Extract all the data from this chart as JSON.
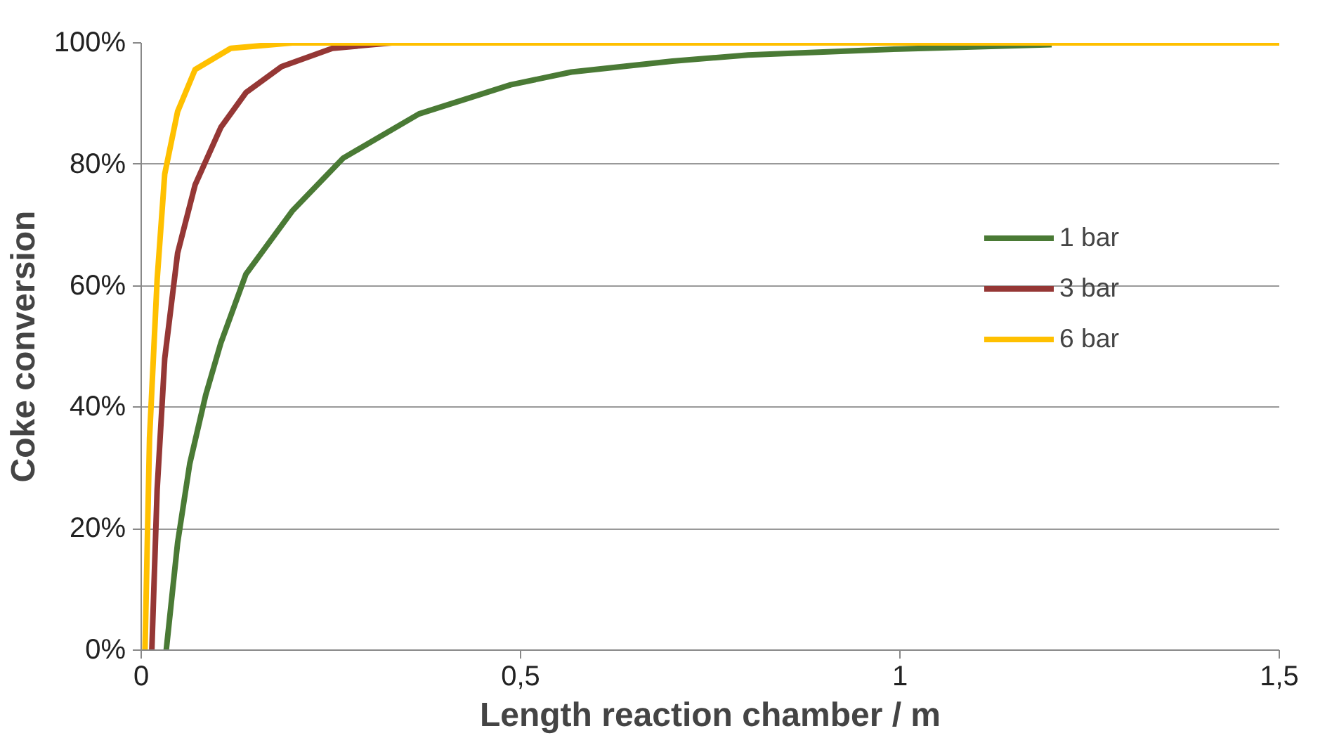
{
  "chart_data": {
    "type": "line",
    "xlabel": "Length reaction chamber / m",
    "ylabel": "Coke conversion",
    "xlim": [
      0,
      1.5
    ],
    "xticks": [
      0,
      {
        "value": 0.5,
        "label": "0,5"
      },
      1,
      {
        "value": 1.5,
        "label": "1,5"
      }
    ],
    "ylim": [
      0,
      100
    ],
    "yticks": [
      {
        "value": 0,
        "label": "0%"
      },
      {
        "value": 20,
        "label": "20%"
      },
      {
        "value": 40,
        "label": "40%"
      },
      {
        "value": 60,
        "label": "60%"
      },
      {
        "value": 80,
        "label": "80%"
      },
      {
        "value": 100,
        "label": "100%"
      }
    ],
    "grid": "y",
    "legend": "right",
    "marker": "none",
    "line_style": "solid",
    "series": [
      {
        "name": "1 bar",
        "color": "#4a7a35",
        "x": [
          0.033,
          0.048,
          0.064,
          0.085,
          0.105,
          0.138,
          0.199,
          0.266,
          0.366,
          0.487,
          0.567,
          0.7,
          0.8,
          1.0,
          1.2
        ],
        "values": [
          0,
          17.7,
          30.7,
          42,
          50.6,
          61.9,
          72.3,
          81,
          88.3,
          93.1,
          95.2,
          97,
          98,
          99,
          99.7
        ]
      },
      {
        "name": "3 bar",
        "color": "#953735",
        "x": [
          0.014,
          0.021,
          0.031,
          0.048,
          0.071,
          0.105,
          0.138,
          0.185,
          0.252,
          0.33
        ],
        "values": [
          0,
          26.4,
          48,
          65.4,
          76.6,
          86.1,
          91.8,
          96.1,
          99.1,
          100
        ]
      },
      {
        "name": "6 bar",
        "color": "#ffc000",
        "x": [
          0.005,
          0.011,
          0.021,
          0.031,
          0.048,
          0.071,
          0.118,
          0.199,
          1.5
        ],
        "values": [
          0,
          35,
          61,
          78.4,
          88.7,
          95.6,
          99.1,
          100,
          100
        ]
      }
    ]
  }
}
